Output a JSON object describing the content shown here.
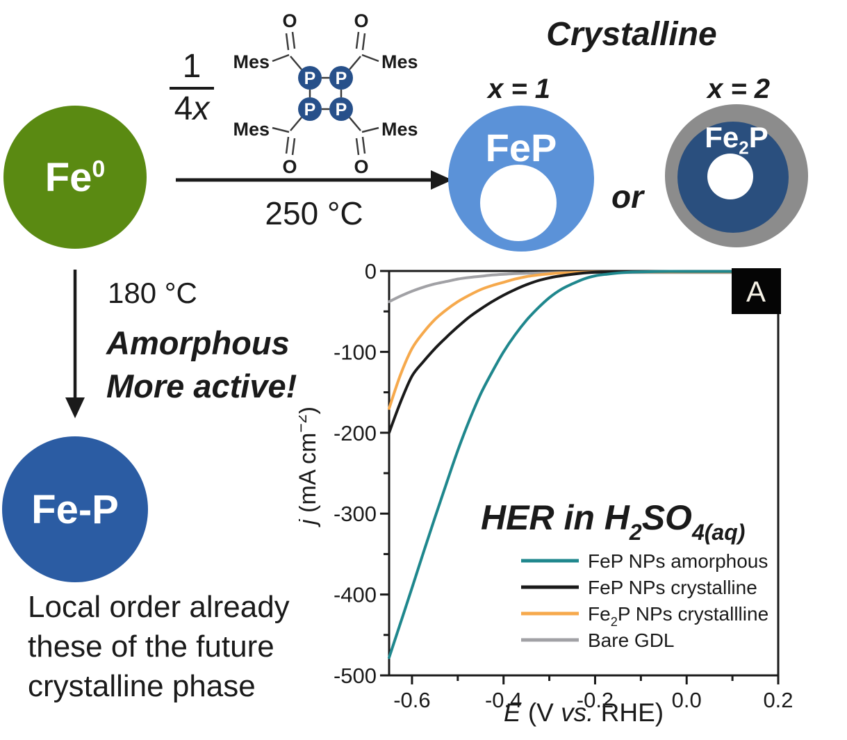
{
  "scheme": {
    "fe0": {
      "base": "Fe",
      "sup": "0"
    },
    "fraction": {
      "numerator": "1",
      "den_coeff": "4",
      "den_var": "x"
    },
    "molecule": {
      "p_symbol": "P",
      "substituent": "Mes",
      "oxygen_symbol": "O"
    },
    "reaction_temp": "250 °C",
    "crystalline_label": "Crystalline",
    "x1_label": "x = 1",
    "x2_label": "x = 2",
    "fep_label": "FeP",
    "or_label": "or",
    "fe2p": {
      "base": "Fe",
      "sub": "2",
      "tail": "P"
    },
    "down_path": {
      "temp": "180 °C",
      "line1": "Amorphous",
      "line2": "More active!"
    },
    "fep_amorphous_label": "Fe-P",
    "caption": [
      "Local order already",
      "these of the future",
      "crystalline phase"
    ],
    "colors": {
      "fe0_green": "#5a8a12",
      "fep_blue": "#5b92d8",
      "fe2p_navy": "#2a4f7e",
      "shell_gray": "#8c8c8c",
      "fep_amorphous_navy": "#2b5ca3",
      "p_atom_blue": "#27508a"
    }
  },
  "chart_data": {
    "type": "line",
    "panel_label": "A",
    "title": "HER in H2SO4(aq)",
    "title_parts": [
      {
        "t": "HER in H"
      },
      {
        "t": "2",
        "sub": true
      },
      {
        "t": "SO"
      },
      {
        "t": "4(aq)",
        "sub": true
      }
    ],
    "xlabel": "E (V vs. RHE)",
    "xlabel_parts": [
      {
        "t": "E",
        "italic": true
      },
      {
        "t": " (V "
      },
      {
        "t": "vs.",
        "italic": true
      },
      {
        "t": " RHE)"
      }
    ],
    "ylabel": "j (mA cm-2)",
    "ylabel_parts": [
      {
        "t": "j",
        "italic": true
      },
      {
        "t": " (mA cm"
      },
      {
        "t": "−2",
        "sup": true
      },
      {
        "t": ")"
      }
    ],
    "xlim": [
      -0.65,
      0.2
    ],
    "ylim": [
      -500,
      0
    ],
    "x_major_ticks": [
      -0.6,
      -0.4,
      -0.2,
      0.0,
      0.2
    ],
    "x_tick_labels": [
      "-0.6",
      "-0.4",
      "-0.2",
      "0.0",
      "0.2"
    ],
    "x_minor_ticks": [
      -0.5,
      -0.3,
      -0.1,
      0.1
    ],
    "y_major_ticks": [
      0,
      -100,
      -200,
      -300,
      -400,
      -500
    ],
    "y_tick_labels": [
      "0",
      "-100",
      "-200",
      "-300",
      "-400",
      "-500"
    ],
    "y_minor_ticks": [
      -50,
      -150,
      -250,
      -350,
      -450
    ],
    "grid": false,
    "legend_position": "inside lower-right",
    "x": [
      -0.65,
      -0.625,
      -0.6,
      -0.575,
      -0.55,
      -0.525,
      -0.5,
      -0.475,
      -0.45,
      -0.425,
      -0.4,
      -0.375,
      -0.35,
      -0.325,
      -0.3,
      -0.275,
      -0.25,
      -0.225,
      -0.2,
      -0.175,
      -0.15,
      -0.125,
      -0.1,
      -0.05,
      0.0,
      0.1,
      0.2
    ],
    "series": [
      {
        "name": "FeP NPs amorphous",
        "name_parts": [
          {
            "t": "FeP NPs amorphous"
          }
        ],
        "color": "#1f878d",
        "y": [
          -478,
          -435,
          -392,
          -348,
          -305,
          -263,
          -222,
          -185,
          -152,
          -125,
          -100,
          -79,
          -61,
          -46,
          -33,
          -23,
          -16,
          -10,
          -6,
          -4,
          -2.5,
          -1.5,
          -1,
          -0.5,
          -0.5,
          -0.5,
          -0.5
        ]
      },
      {
        "name": "FeP NPs crystalline",
        "name_parts": [
          {
            "t": "FeP NPs crystalline"
          }
        ],
        "color": "#1a1a1a",
        "y": [
          -200,
          -162,
          -130,
          -112,
          -96,
          -82,
          -69,
          -57,
          -47,
          -38,
          -30,
          -23,
          -17,
          -12,
          -8.5,
          -6,
          -4,
          -2.5,
          -1.5,
          -1,
          -0.8,
          -0.6,
          -0.5,
          -0.5,
          -0.5,
          -0.5,
          -0.5
        ]
      },
      {
        "name": "Fe2P NPs crystallline",
        "name_parts": [
          {
            "t": "Fe"
          },
          {
            "t": "2",
            "sub": true
          },
          {
            "t": "P NPs crystallline"
          }
        ],
        "color": "#f6a94c",
        "y": [
          -170,
          -128,
          -96,
          -76,
          -60,
          -48,
          -38,
          -30,
          -23,
          -18,
          -14,
          -10,
          -7,
          -5,
          -3.5,
          -2.5,
          -2,
          -1.5,
          -1.2,
          -1,
          -1,
          -1,
          -1,
          -1,
          -1,
          -1,
          -1
        ]
      },
      {
        "name": "Bare GDL",
        "name_parts": [
          {
            "t": "Bare GDL"
          }
        ],
        "color": "#a1a1a5",
        "y": [
          -38,
          -31,
          -25,
          -20,
          -16,
          -13,
          -10,
          -8,
          -6.5,
          -5,
          -4,
          -3.3,
          -2.8,
          -2.5,
          -2.2,
          -2,
          -2,
          -2,
          -2,
          -2,
          -2,
          -2,
          -2,
          -2,
          -2,
          -2,
          -2
        ]
      }
    ]
  }
}
